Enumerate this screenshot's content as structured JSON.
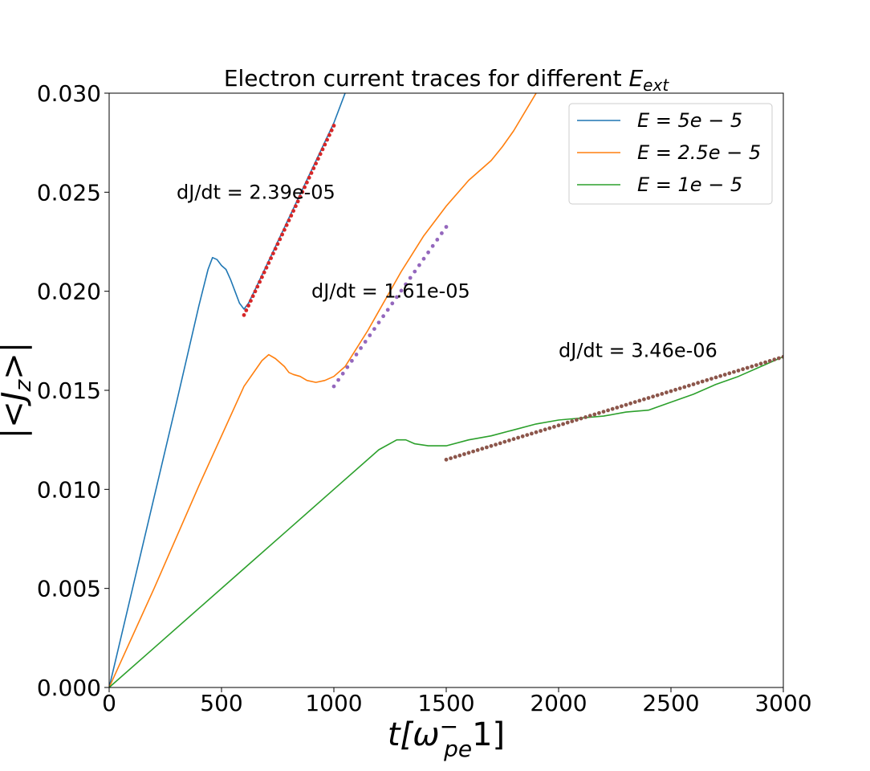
{
  "chart_data": {
    "type": "line",
    "title": "Electron current traces for different",
    "title_math": "E",
    "title_math_sub": "ext",
    "xlabel": "t[ω",
    "xlabel_sub": "pe",
    "xlabel_sup": "−",
    "xlabel_tail": "1]",
    "ylabel": "|<J",
    "ylabel_sub": "z",
    "ylabel_tail": ">|",
    "xlim": [
      0,
      3000
    ],
    "ylim": [
      0,
      0.03
    ],
    "xticks": [
      0,
      500,
      1000,
      1500,
      2000,
      2500,
      3000
    ],
    "xtick_labels": [
      "0",
      "500",
      "1000",
      "1500",
      "2000",
      "2500",
      "3000"
    ],
    "yticks": [
      0,
      0.005,
      0.01,
      0.015,
      0.02,
      0.025,
      0.03
    ],
    "ytick_labels": [
      "0.000",
      "0.005",
      "0.010",
      "0.015",
      "0.020",
      "0.025",
      "0.030"
    ],
    "grid": false,
    "legend_position": "top-right",
    "series": [
      {
        "name": "E = 5e − 5",
        "color": "#1f77b4",
        "x": [
          0,
          100,
          200,
          300,
          400,
          440,
          460,
          480,
          500,
          520,
          540,
          560,
          580,
          600,
          620,
          650,
          700,
          800,
          900,
          1000,
          1050
        ],
        "y": [
          0,
          0.0048,
          0.0096,
          0.0144,
          0.0193,
          0.0211,
          0.0217,
          0.0216,
          0.0213,
          0.0211,
          0.0206,
          0.02,
          0.0194,
          0.0191,
          0.0194,
          0.0201,
          0.0213,
          0.0237,
          0.0261,
          0.0285,
          0.03
        ]
      },
      {
        "name": "E = 2.5e − 5",
        "color": "#ff7f0e",
        "x": [
          0,
          200,
          400,
          600,
          680,
          710,
          740,
          780,
          800,
          820,
          850,
          880,
          920,
          960,
          1000,
          1050,
          1100,
          1150,
          1200,
          1300,
          1400,
          1500,
          1600,
          1700,
          1750,
          1800,
          1900
        ],
        "y": [
          0,
          0.005,
          0.0102,
          0.0152,
          0.0165,
          0.0168,
          0.0166,
          0.0162,
          0.0159,
          0.0158,
          0.0157,
          0.0155,
          0.0154,
          0.0155,
          0.0157,
          0.0162,
          0.0171,
          0.018,
          0.019,
          0.021,
          0.0228,
          0.0243,
          0.0256,
          0.0266,
          0.0273,
          0.0281,
          0.03
        ]
      },
      {
        "name": "E = 1e − 5",
        "color": "#2ca02c",
        "x": [
          0,
          200,
          400,
          600,
          800,
          1000,
          1200,
          1280,
          1320,
          1360,
          1420,
          1500,
          1600,
          1700,
          1800,
          1900,
          2000,
          2100,
          2200,
          2300,
          2400,
          2500,
          2600,
          2700,
          2800,
          2900,
          3000
        ],
        "y": [
          0,
          0.002,
          0.004,
          0.006,
          0.008,
          0.01,
          0.012,
          0.0125,
          0.0125,
          0.0123,
          0.0122,
          0.0122,
          0.0125,
          0.0127,
          0.013,
          0.0133,
          0.0135,
          0.0136,
          0.0137,
          0.0139,
          0.014,
          0.0144,
          0.0148,
          0.0153,
          0.0157,
          0.0162,
          0.0167
        ]
      }
    ],
    "fits": [
      {
        "label": "dJ/dt = 2.39e-05",
        "slope": 2.39e-05,
        "x0": 600,
        "x1": 1000,
        "y0": 0.0188,
        "step": 10,
        "color": "#d62728",
        "label_x": 300,
        "label_y": 0.025
      },
      {
        "label": "dJ/dt = 1.61e-05",
        "slope": 1.61e-05,
        "x0": 1000,
        "x1": 1500,
        "y0": 0.0152,
        "step": 20,
        "color": "#9467bd",
        "label_x": 900,
        "label_y": 0.02
      },
      {
        "label": "dJ/dt = 3.46e-06",
        "slope": 3.46e-06,
        "x0": 1500,
        "x1": 3000,
        "y0": 0.0115,
        "step": 20,
        "color": "#8c564b",
        "label_x": 2000,
        "label_y": 0.017
      }
    ]
  }
}
